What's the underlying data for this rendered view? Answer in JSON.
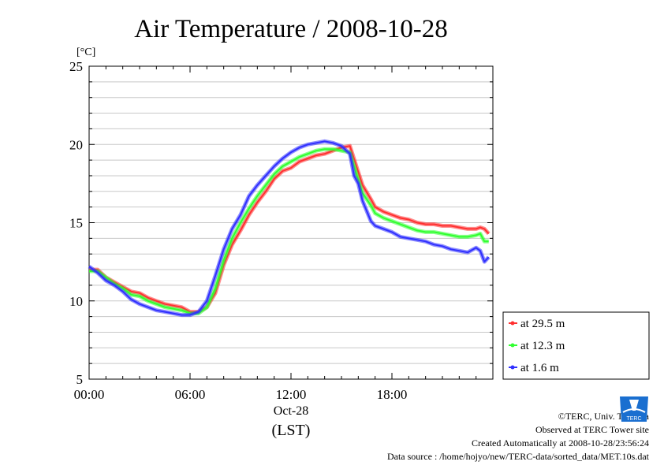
{
  "chart_data": {
    "type": "line",
    "title": "Air Temperature / 2008-10-28",
    "ylabel": "[°C]",
    "xlabel": "(LST)",
    "date_label": "Oct-28",
    "ylim": [
      5,
      25
    ],
    "xlim": [
      "00:00",
      "24:00"
    ],
    "yticks": [
      5,
      10,
      15,
      20,
      25
    ],
    "yminor_step": 1,
    "xticks": [
      "00:00",
      "06:00",
      "12:00",
      "18:00"
    ],
    "grid": true,
    "legend_position": "right, below plot top",
    "series": [
      {
        "name": "at 29.5 m",
        "color": "#ff3030",
        "x": [
          "00:00",
          "00:30",
          "01:00",
          "01:30",
          "02:00",
          "02:30",
          "03:00",
          "03:30",
          "04:00",
          "04:30",
          "05:00",
          "05:30",
          "06:00",
          "06:30",
          "07:00",
          "07:30",
          "08:00",
          "08:30",
          "09:00",
          "09:30",
          "10:00",
          "10:30",
          "11:00",
          "11:30",
          "12:00",
          "12:30",
          "13:00",
          "13:30",
          "14:00",
          "14:30",
          "15:00",
          "15:30",
          "15:55",
          "16:15",
          "16:45",
          "17:00",
          "17:30",
          "18:00",
          "18:30",
          "19:00",
          "19:30",
          "20:00",
          "20:30",
          "21:00",
          "21:30",
          "22:00",
          "22:30",
          "23:00",
          "23:15",
          "23:30",
          "23:45"
        ],
        "values": [
          12.0,
          12.0,
          11.5,
          11.2,
          10.9,
          10.6,
          10.5,
          10.2,
          10.0,
          9.8,
          9.7,
          9.6,
          9.3,
          9.3,
          9.6,
          10.5,
          12.3,
          13.6,
          14.5,
          15.5,
          16.3,
          17.0,
          17.8,
          18.3,
          18.5,
          18.9,
          19.1,
          19.3,
          19.4,
          19.6,
          19.8,
          19.9,
          18.5,
          17.4,
          16.5,
          16.0,
          15.7,
          15.5,
          15.3,
          15.2,
          15.0,
          14.9,
          14.9,
          14.8,
          14.8,
          14.7,
          14.6,
          14.6,
          14.7,
          14.6,
          14.3
        ]
      },
      {
        "name": "at 12.3 m",
        "color": "#30ff30",
        "x": [
          "00:00",
          "00:30",
          "01:00",
          "01:30",
          "02:00",
          "02:30",
          "03:00",
          "03:30",
          "04:00",
          "04:30",
          "05:00",
          "05:30",
          "06:00",
          "06:30",
          "07:00",
          "07:30",
          "08:00",
          "08:30",
          "09:00",
          "09:30",
          "10:00",
          "10:30",
          "11:00",
          "11:30",
          "12:00",
          "12:30",
          "13:00",
          "13:30",
          "14:00",
          "14:30",
          "15:00",
          "15:30",
          "15:55",
          "16:15",
          "16:45",
          "17:00",
          "17:30",
          "18:00",
          "18:30",
          "19:00",
          "19:30",
          "20:00",
          "20:30",
          "21:00",
          "21:30",
          "22:00",
          "22:30",
          "23:00",
          "23:15",
          "23:30",
          "23:45"
        ],
        "values": [
          11.9,
          11.9,
          11.5,
          11.1,
          10.8,
          10.4,
          10.3,
          10.0,
          9.8,
          9.6,
          9.5,
          9.4,
          9.2,
          9.2,
          9.6,
          10.8,
          12.6,
          14.0,
          15.0,
          15.9,
          16.7,
          17.4,
          18.1,
          18.6,
          18.9,
          19.2,
          19.4,
          19.6,
          19.7,
          19.7,
          19.6,
          19.5,
          18.0,
          16.9,
          16.1,
          15.6,
          15.3,
          15.1,
          14.9,
          14.7,
          14.5,
          14.4,
          14.4,
          14.3,
          14.2,
          14.1,
          14.1,
          14.2,
          14.3,
          13.8,
          13.8
        ]
      },
      {
        "name": "at 1.6 m",
        "color": "#3030ff",
        "x": [
          "00:00",
          "00:30",
          "01:00",
          "01:30",
          "02:00",
          "02:30",
          "03:00",
          "03:30",
          "04:00",
          "04:30",
          "05:00",
          "05:30",
          "06:00",
          "06:30",
          "07:00",
          "07:30",
          "08:00",
          "08:30",
          "09:00",
          "09:30",
          "10:00",
          "10:30",
          "11:00",
          "11:30",
          "12:00",
          "12:30",
          "13:00",
          "13:30",
          "14:00",
          "14:30",
          "15:00",
          "15:30",
          "15:45",
          "16:00",
          "16:15",
          "16:45",
          "17:00",
          "17:30",
          "18:00",
          "18:30",
          "19:00",
          "19:30",
          "20:00",
          "20:30",
          "21:00",
          "21:30",
          "22:00",
          "22:30",
          "23:00",
          "23:15",
          "23:30",
          "23:45"
        ],
        "values": [
          12.2,
          11.8,
          11.3,
          11.0,
          10.6,
          10.1,
          9.8,
          9.6,
          9.4,
          9.3,
          9.2,
          9.1,
          9.1,
          9.3,
          10.0,
          11.6,
          13.3,
          14.6,
          15.5,
          16.7,
          17.4,
          18.0,
          18.6,
          19.1,
          19.5,
          19.8,
          20.0,
          20.1,
          20.2,
          20.1,
          19.9,
          19.4,
          18.0,
          17.5,
          16.4,
          15.1,
          14.8,
          14.6,
          14.4,
          14.1,
          14.0,
          13.9,
          13.8,
          13.6,
          13.5,
          13.3,
          13.2,
          13.1,
          13.4,
          13.2,
          12.5,
          12.8
        ]
      }
    ]
  },
  "credits": {
    "copyright": "©TERC, Univ. Tsukuba",
    "site": "Observed at TERC Tower site",
    "created": "Created Automatically at 2008-10-28/23:56:24",
    "source": "Data source : /home/hojyo/new/TERC-data/sorted_data/MET.10s.dat",
    "logo_text": "TERC"
  }
}
